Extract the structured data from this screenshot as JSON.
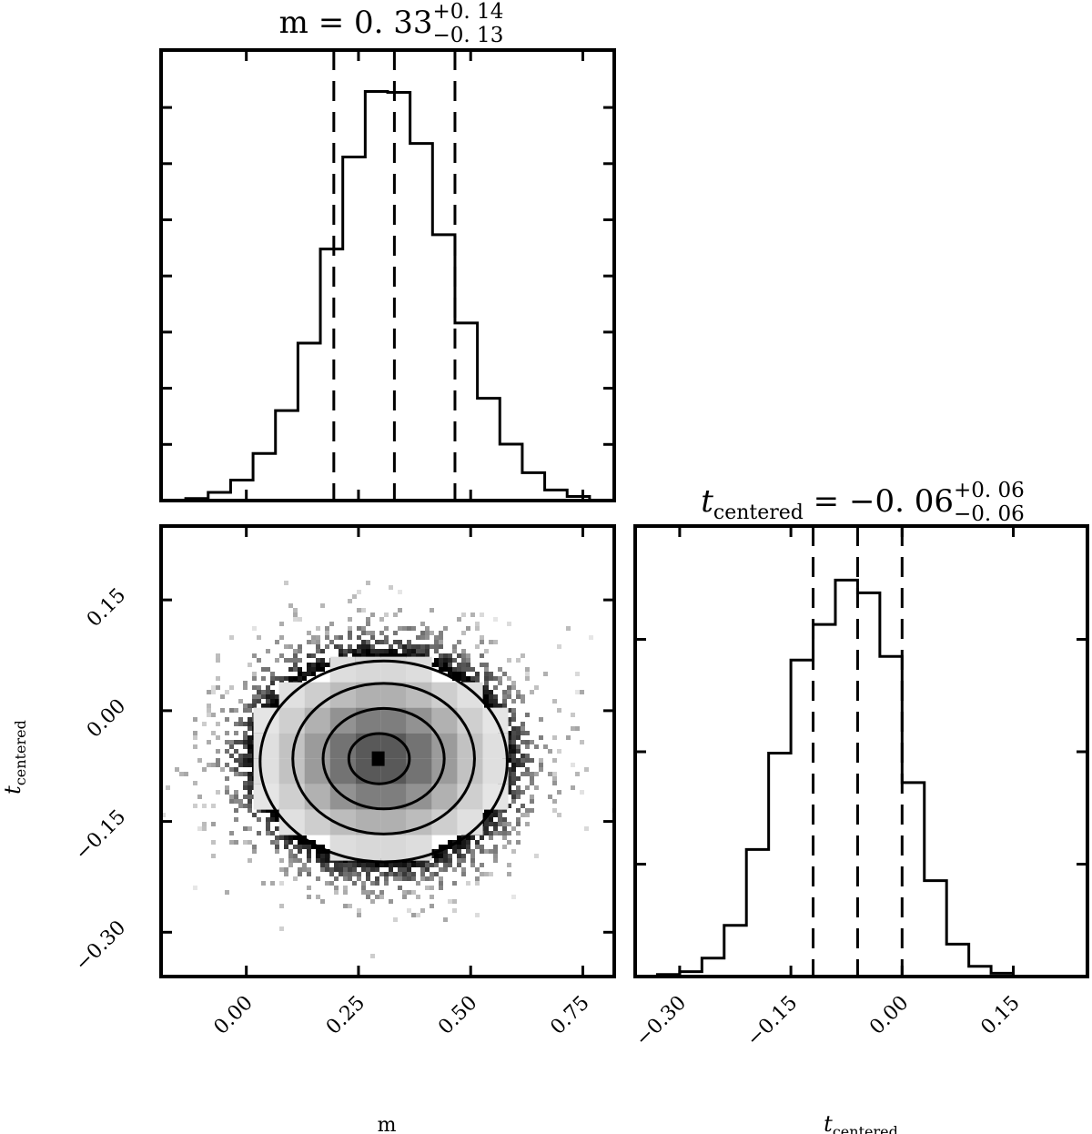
{
  "chart_data": [
    {
      "panel": "m-histogram",
      "type": "histogram",
      "title": {
        "base": "m = 0. 33",
        "sup": "+0. 14",
        "sub": "−0. 13"
      },
      "xlabel": "m",
      "xlim": [
        -0.19,
        0.82
      ],
      "ylim": [
        0,
        1.0
      ],
      "ticks": [
        0.0,
        0.25,
        0.5,
        0.75
      ],
      "tick_labels": [
        "0.00",
        "0.25",
        "0.50",
        "0.75"
      ],
      "bin_edges": [
        -0.135,
        -0.085,
        -0.035,
        0.015,
        0.065,
        0.115,
        0.165,
        0.215,
        0.265,
        0.315,
        0.365,
        0.415,
        0.465,
        0.515,
        0.565,
        0.615,
        0.665,
        0.715,
        0.765
      ],
      "counts": [
        0.005,
        0.02,
        0.05,
        0.115,
        0.22,
        0.385,
        0.615,
        0.84,
        1.0,
        0.998,
        0.873,
        0.65,
        0.434,
        0.25,
        0.138,
        0.068,
        0.026,
        0.01
      ],
      "quantiles": [
        0.195,
        0.33,
        0.465
      ]
    },
    {
      "panel": "t-histogram",
      "type": "histogram",
      "title": {
        "base": "t",
        "base_sub": "centered",
        "rest": " = −0. 06",
        "sup": "+0. 06",
        "sub": "−0. 06"
      },
      "xlabel": {
        "base": "t",
        "sub": "centered"
      },
      "xlim": [
        -0.36,
        0.25
      ],
      "ylim": [
        0,
        1.0
      ],
      "ticks": [
        -0.3,
        -0.15,
        0.0,
        0.15
      ],
      "tick_labels": [
        "−0.30",
        "−0.15",
        "0.00",
        "0.15"
      ],
      "bin_edges": [
        -0.33,
        -0.3,
        -0.27,
        -0.24,
        -0.21,
        -0.18,
        -0.15,
        -0.12,
        -0.09,
        -0.06,
        -0.03,
        0.0,
        0.03,
        0.06,
        0.09,
        0.12,
        0.15
      ],
      "counts": [
        0.005,
        0.012,
        0.045,
        0.125,
        0.31,
        0.545,
        0.772,
        0.859,
        0.967,
        0.936,
        0.781,
        0.473,
        0.234,
        0.079,
        0.025,
        0.008
      ],
      "quantiles": [
        -0.12,
        -0.06,
        0.0
      ]
    },
    {
      "panel": "m-vs-t",
      "type": "heatmap",
      "xlim": [
        -0.19,
        0.82
      ],
      "ylim": [
        -0.36,
        0.25
      ],
      "xticks": [
        0.0,
        0.25,
        0.5,
        0.75
      ],
      "xtick_labels": [
        "0.00",
        "0.25",
        "0.50",
        "0.75"
      ],
      "yticks": [
        -0.3,
        -0.15,
        0.0,
        0.15
      ],
      "ytick_labels": [
        "−0.30",
        "−0.15",
        "0.00",
        "0.15"
      ],
      "ylabel": {
        "base": "t",
        "sub": "centered"
      },
      "center": [
        0.3,
        -0.065
      ],
      "sigma": [
        0.135,
        0.068
      ],
      "contour_levels": [
        "0.5σ",
        "1σ",
        "1.5σ",
        "2σ"
      ]
    }
  ]
}
